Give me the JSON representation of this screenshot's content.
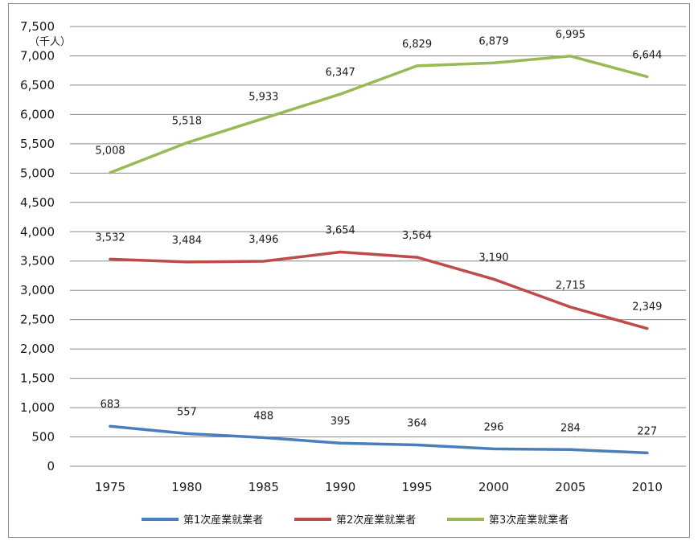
{
  "chart_data": {
    "type": "line",
    "unit_label": "（千人）",
    "categories": [
      "1975",
      "1980",
      "1985",
      "1990",
      "1995",
      "2000",
      "2005",
      "2010"
    ],
    "ylim": [
      0,
      7500
    ],
    "ytick_step": 500,
    "ytick_labels": [
      "0",
      "500",
      "1,000",
      "1,500",
      "2,000",
      "2,500",
      "3,000",
      "3,500",
      "4,000",
      "4,500",
      "5,000",
      "5,500",
      "6,000",
      "6,500",
      "7,000",
      "7,500"
    ],
    "grid": true,
    "legend_position": "bottom",
    "series": [
      {
        "name": "第1次産業就業者",
        "color": "#4a7ebb",
        "values": [
          683,
          557,
          488,
          395,
          364,
          296,
          284,
          227
        ],
        "labels": [
          "683",
          "557",
          "488",
          "395",
          "364",
          "296",
          "284",
          "227"
        ]
      },
      {
        "name": "第2次産業就業者",
        "color": "#be4b48",
        "values": [
          3532,
          3484,
          3496,
          3654,
          3564,
          3190,
          2715,
          2349
        ],
        "labels": [
          "3,532",
          "3,484",
          "3,496",
          "3,654",
          "3,564",
          "3,190",
          "2,715",
          "2,349"
        ]
      },
      {
        "name": "第3次産業就業者",
        "color": "#98b954",
        "values": [
          5008,
          5518,
          5933,
          6347,
          6829,
          6879,
          6995,
          6644
        ],
        "labels": [
          "5,008",
          "5,518",
          "5,933",
          "6,347",
          "6,829",
          "6,879",
          "6,995",
          "6,644"
        ]
      }
    ]
  }
}
